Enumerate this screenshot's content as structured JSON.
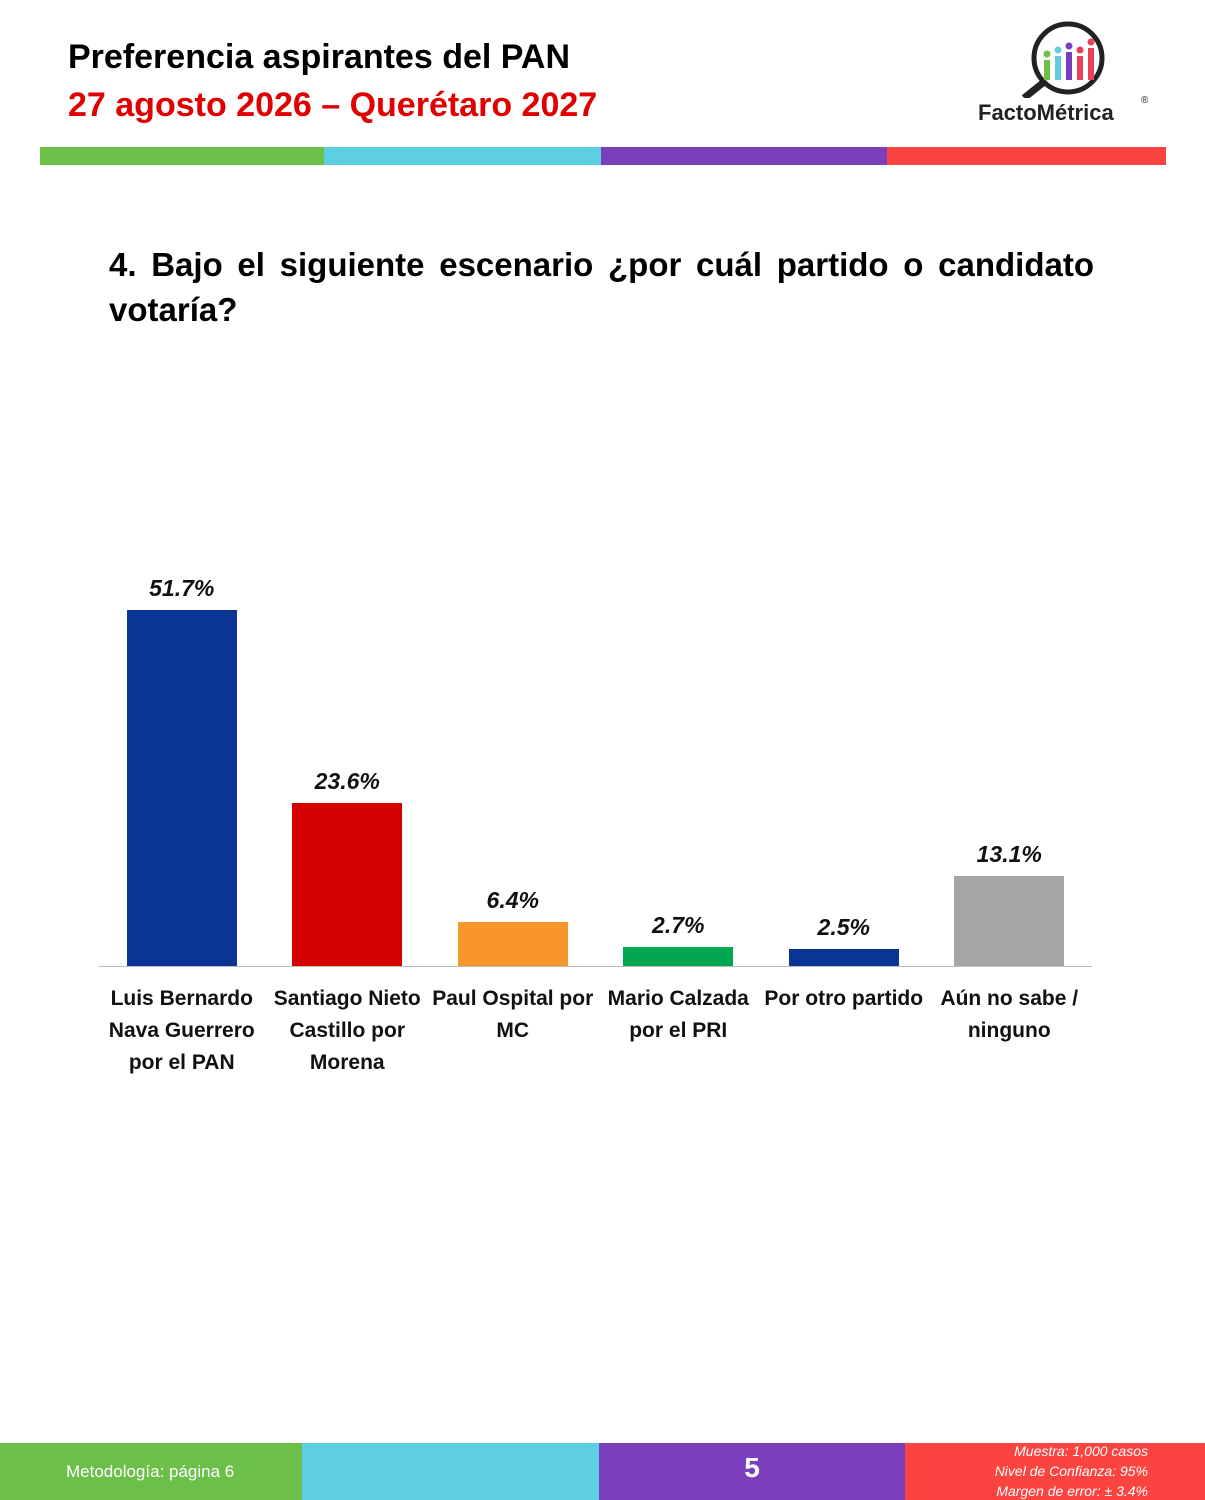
{
  "header": {
    "title": "Preferencia aspirantes del PAN",
    "subtitle": "27 agosto 2026 – Querétaro 2027",
    "logo": "FactoMétrica",
    "logo_mark": "®"
  },
  "question": "4. Bajo el siguiente escenario ¿por cuál partido o candidato votaría?",
  "chart_data": {
    "type": "bar",
    "categories": [
      "Luis Bernardo Nava Guerrero por el PAN",
      "Santiago Nieto Castillo por Morena",
      "Paul Ospital por MC",
      "Mario Calzada por el PRI",
      "Por otro partido",
      "Aún no sabe / ninguno"
    ],
    "values": [
      51.7,
      23.6,
      6.4,
      2.7,
      2.5,
      13.1
    ],
    "value_labels": [
      "51.7%",
      "23.6%",
      "6.4%",
      "2.7%",
      "2.5%",
      "13.1%"
    ],
    "colors": [
      "#0a3595",
      "#d40000",
      "#f7962b",
      "#00a650",
      "#0a3595",
      "#a6a6a6"
    ]
  },
  "footer": {
    "methodology": "Metodología: página  6",
    "page": "5",
    "notes": [
      "Muestra:  1,000 casos",
      "Nivel de Confianza: 95%",
      "Margen de error: ± 3.4%"
    ]
  }
}
